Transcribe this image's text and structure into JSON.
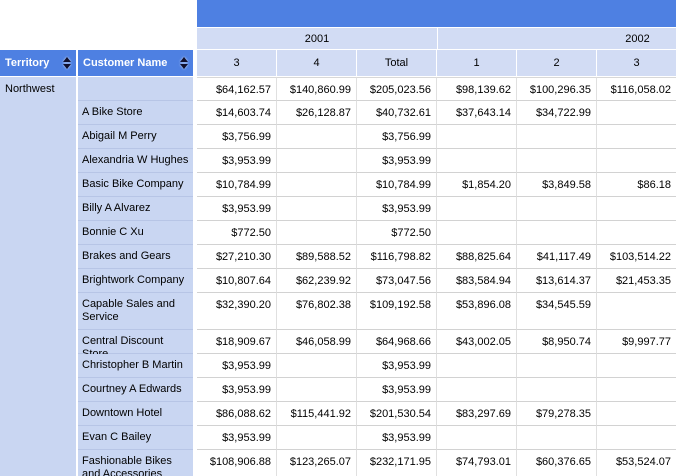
{
  "report": {
    "type": "matrix-sales-report",
    "colors": {
      "header_blue": "#4E80E2",
      "band_light_blue": "#D2DCF4",
      "row_label_blue": "#C9D6F2",
      "grid_line": "#D2D2D2"
    },
    "table": {
      "column_headers": {
        "territory": "Territory",
        "customer": "Customer Name"
      },
      "year_groups": [
        {
          "label": "2001",
          "quarters": [
            "3",
            "4",
            "Total"
          ]
        },
        {
          "label": "2002",
          "quarters": [
            "1",
            "2",
            "3"
          ]
        }
      ],
      "rows": [
        {
          "territory": "Northwest",
          "customer": "",
          "values": [
            "$64,162.57",
            "$140,860.99",
            "$205,023.56",
            "$98,139.62",
            "$100,296.35",
            "$116,058.02"
          ]
        },
        {
          "customer": "A Bike Store",
          "values": [
            "$14,603.74",
            "$26,128.87",
            "$40,732.61",
            "$37,643.14",
            "$34,722.99",
            ""
          ]
        },
        {
          "customer": "Abigail M Perry",
          "values": [
            "$3,756.99",
            "",
            "$3,756.99",
            "",
            "",
            ""
          ]
        },
        {
          "customer": "Alexandria W Hughes",
          "values": [
            "$3,953.99",
            "",
            "$3,953.99",
            "",
            "",
            ""
          ]
        },
        {
          "customer": "Basic Bike Company",
          "values": [
            "$10,784.99",
            "",
            "$10,784.99",
            "$1,854.20",
            "$3,849.58",
            "$86.18"
          ]
        },
        {
          "customer": "Billy A Alvarez",
          "values": [
            "$3,953.99",
            "",
            "$3,953.99",
            "",
            "",
            ""
          ]
        },
        {
          "customer": "Bonnie C Xu",
          "values": [
            "$772.50",
            "",
            "$772.50",
            "",
            "",
            ""
          ]
        },
        {
          "customer": "Brakes and Gears",
          "values": [
            "$27,210.30",
            "$89,588.52",
            "$116,798.82",
            "$88,825.64",
            "$41,117.49",
            "$103,514.22"
          ]
        },
        {
          "customer": "Brightwork Company",
          "values": [
            "$10,807.64",
            "$62,239.92",
            "$73,047.56",
            "$83,584.94",
            "$13,614.37",
            "$21,453.35"
          ]
        },
        {
          "customer": "Capable Sales and Service",
          "values": [
            "$32,390.20",
            "$76,802.38",
            "$109,192.58",
            "$53,896.08",
            "$34,545.59",
            ""
          ]
        },
        {
          "customer": "Central Discount Store",
          "values": [
            "$18,909.67",
            "$46,058.99",
            "$64,968.66",
            "$43,002.05",
            "$8,950.74",
            "$9,997.77"
          ]
        },
        {
          "customer": "Christopher B Martin",
          "values": [
            "$3,953.99",
            "",
            "$3,953.99",
            "",
            "",
            ""
          ]
        },
        {
          "customer": "Courtney A Edwards",
          "values": [
            "$3,953.99",
            "",
            "$3,953.99",
            "",
            "",
            ""
          ]
        },
        {
          "customer": "Downtown Hotel",
          "values": [
            "$86,088.62",
            "$115,441.92",
            "$201,530.54",
            "$83,297.69",
            "$79,278.35",
            ""
          ]
        },
        {
          "customer": "Evan C Bailey",
          "values": [
            "$3,953.99",
            "",
            "$3,953.99",
            "",
            "",
            ""
          ]
        },
        {
          "customer": "Fashionable Bikes and Accessories",
          "values": [
            "$108,906.88",
            "$123,265.07",
            "$232,171.95",
            "$74,793.01",
            "$60,376.65",
            "$53,524.07"
          ]
        }
      ]
    }
  }
}
